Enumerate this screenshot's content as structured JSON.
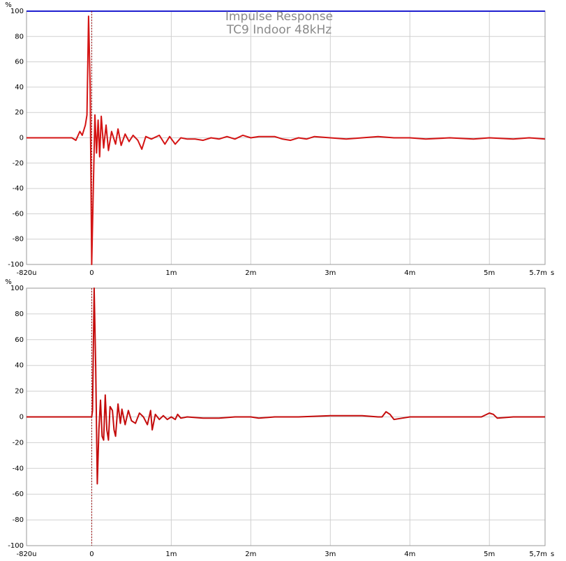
{
  "chart_data": [
    {
      "type": "line",
      "title": "Impulse Response",
      "subtitle": "TC9 Indoor 48kHz",
      "xlabel": "s",
      "ylabel": "%",
      "xlim": [
        -0.82,
        5.7
      ],
      "ylim": [
        -100,
        100
      ],
      "xticks": [
        {
          "value": -0.82,
          "label": "-820u"
        },
        0,
        {
          "value": 1,
          "label": "1m"
        },
        {
          "value": 2,
          "label": "2m"
        },
        {
          "value": 3,
          "label": "3m"
        },
        {
          "value": 4,
          "label": "4m"
        },
        {
          "value": 5,
          "label": "5m"
        },
        {
          "value": 5.7,
          "label": "5.7m"
        }
      ],
      "yticks": [
        -100,
        -80,
        -60,
        -40,
        -20,
        0,
        20,
        40,
        60,
        80,
        100
      ],
      "grid": true,
      "x": [
        -0.82,
        -0.25,
        -0.2,
        -0.15,
        -0.12,
        -0.08,
        -0.06,
        -0.04,
        -0.02,
        0,
        0.02,
        0.04,
        0.06,
        0.08,
        0.1,
        0.12,
        0.15,
        0.18,
        0.21,
        0.25,
        0.3,
        0.33,
        0.37,
        0.42,
        0.47,
        0.52,
        0.58,
        0.63,
        0.68,
        0.75,
        0.85,
        0.92,
        0.98,
        1.05,
        1.12,
        1.2,
        1.3,
        1.4,
        1.5,
        1.6,
        1.7,
        1.8,
        1.9,
        2.0,
        2.1,
        2.3,
        2.4,
        2.5,
        2.6,
        2.7,
        2.8,
        3.0,
        3.2,
        3.4,
        3.6,
        3.8,
        4.0,
        4.2,
        4.5,
        4.8,
        5.0,
        5.3,
        5.5,
        5.7
      ],
      "series": [
        {
          "color": "#d41414",
          "values": [
            0,
            0,
            -2,
            5,
            2,
            10,
            18,
            96,
            40,
            -100,
            -40,
            18,
            -12,
            14,
            -15,
            17,
            -8,
            10,
            -10,
            5,
            -5,
            7,
            -6,
            3,
            -3,
            2,
            -2,
            -9,
            1,
            -1,
            2,
            -5,
            1,
            -5,
            0,
            -1,
            -1,
            -2,
            0,
            -1,
            1,
            -1,
            2,
            0,
            1,
            1,
            -1,
            -2,
            0,
            -1,
            1,
            0,
            -1,
            0,
            1,
            0,
            0,
            -1,
            0,
            -1,
            0,
            -1,
            0,
            -1
          ]
        }
      ]
    },
    {
      "type": "line",
      "xlabel": "s",
      "ylabel": "%",
      "xlim": [
        -0.82,
        5.7
      ],
      "ylim": [
        -100,
        100
      ],
      "xticks": [
        {
          "value": -0.82,
          "label": "-820u"
        },
        0,
        {
          "value": 1,
          "label": "1m"
        },
        {
          "value": 2,
          "label": "2m"
        },
        {
          "value": 3,
          "label": "3m"
        },
        {
          "value": 4,
          "label": "4m"
        },
        {
          "value": 5,
          "label": "5m"
        },
        {
          "value": 5.7,
          "label": "5,7m"
        }
      ],
      "yticks": [
        -100,
        -80,
        -60,
        -40,
        -20,
        0,
        20,
        40,
        60,
        80,
        100
      ],
      "grid": true,
      "x": [
        -0.82,
        0,
        0.01,
        0.03,
        0.05,
        0.07,
        0.09,
        0.11,
        0.13,
        0.15,
        0.17,
        0.19,
        0.21,
        0.23,
        0.26,
        0.28,
        0.3,
        0.33,
        0.36,
        0.38,
        0.42,
        0.46,
        0.5,
        0.55,
        0.6,
        0.65,
        0.7,
        0.74,
        0.76,
        0.8,
        0.85,
        0.9,
        0.95,
        1.0,
        1.05,
        1.08,
        1.12,
        1.2,
        1.4,
        1.6,
        1.8,
        2.0,
        2.1,
        2.3,
        2.6,
        3.0,
        3.4,
        3.6,
        3.65,
        3.7,
        3.75,
        3.8,
        3.9,
        4.0,
        4.2,
        4.5,
        4.9,
        5.0,
        5.05,
        5.1,
        5.3,
        5.7
      ],
      "series": [
        {
          "color": "#c40c0c",
          "values": [
            0,
            0,
            5,
            100,
            40,
            -52,
            -10,
            13,
            -15,
            -18,
            17,
            -10,
            -18,
            8,
            5,
            -10,
            -15,
            10,
            -5,
            6,
            -6,
            5,
            -3,
            -5,
            3,
            0,
            -6,
            5,
            -10,
            2,
            -2,
            1,
            -2,
            0,
            -2,
            2,
            -1,
            0,
            -1,
            -1,
            0,
            0,
            -1,
            0,
            0,
            1,
            1,
            0,
            0,
            4,
            2,
            -2,
            -1,
            0,
            0,
            0,
            0,
            3,
            2,
            -1,
            0,
            0
          ]
        }
      ]
    }
  ]
}
